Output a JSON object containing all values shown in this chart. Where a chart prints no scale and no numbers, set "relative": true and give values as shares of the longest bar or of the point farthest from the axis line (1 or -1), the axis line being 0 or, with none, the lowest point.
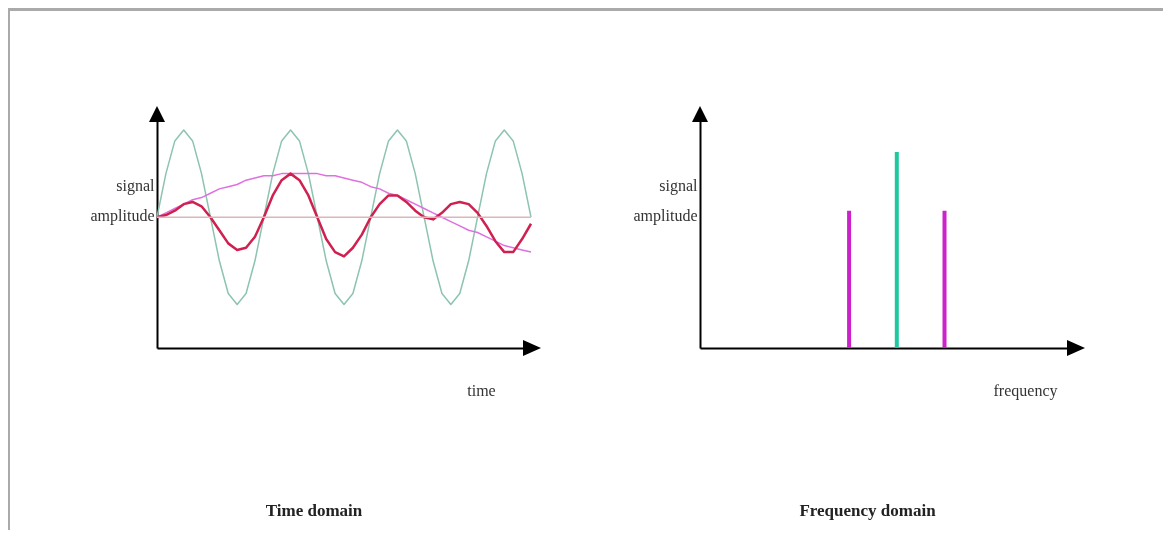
{
  "chart_data": [
    {
      "type": "line",
      "title": "Time domain",
      "xlabel": "time",
      "ylabel": "signal amplitude",
      "relative": true,
      "tick_labels": false,
      "categories": [
        null,
        null,
        null,
        null,
        null,
        null,
        null,
        null,
        null,
        null,
        null,
        null,
        null,
        null,
        null,
        null,
        null,
        null,
        null,
        null,
        null,
        null,
        null,
        null,
        null,
        null,
        null,
        null,
        null,
        null,
        null,
        null,
        null,
        null,
        null,
        null,
        null,
        null,
        null,
        null,
        null,
        null,
        null
      ],
      "series": [
        {
          "color": "#8cc4b0",
          "values": [
            0.6,
            0.8,
            0.95,
            1,
            0.95,
            0.8,
            0.6,
            0.4,
            0.25,
            0.2,
            0.25,
            0.4,
            0.6,
            0.8,
            0.95,
            1,
            0.95,
            0.8,
            0.6,
            0.4,
            0.25,
            0.2,
            0.25,
            0.4,
            0.6,
            0.8,
            0.95,
            1,
            0.95,
            0.8,
            0.6,
            0.4,
            0.25,
            0.2,
            0.25,
            0.4,
            0.6,
            0.8,
            0.95,
            1,
            0.95,
            0.8,
            0.6
          ]
        },
        {
          "color": "#e070e0",
          "values": [
            0.6,
            0.62,
            0.64,
            0.66,
            0.68,
            0.69,
            0.71,
            0.73,
            0.74,
            0.75,
            0.77,
            0.78,
            0.79,
            0.79,
            0.8,
            0.8,
            0.8,
            0.8,
            0.8,
            0.79,
            0.79,
            0.78,
            0.77,
            0.76,
            0.74,
            0.73,
            0.71,
            0.7,
            0.68,
            0.66,
            0.64,
            0.62,
            0.6,
            0.58,
            0.56,
            0.54,
            0.53,
            0.51,
            0.49,
            0.47,
            0.46,
            0.45,
            0.44
          ]
        },
        {
          "color": "#d02050",
          "values": [
            0.6,
            0.61,
            0.63,
            0.66,
            0.67,
            0.65,
            0.6,
            0.54,
            0.48,
            0.45,
            0.46,
            0.51,
            0.6,
            0.7,
            0.77,
            0.8,
            0.77,
            0.7,
            0.6,
            0.5,
            0.44,
            0.42,
            0.46,
            0.52,
            0.6,
            0.66,
            0.7,
            0.7,
            0.67,
            0.63,
            0.6,
            0.59,
            0.62,
            0.66,
            0.67,
            0.66,
            0.62,
            0.56,
            0.49,
            0.44,
            0.44,
            0.5,
            0.57
          ]
        }
      ],
      "ref_lines": [
        {
          "axis": "y",
          "value": 0.6,
          "color": "#d8b8b8"
        }
      ]
    },
    {
      "type": "bar",
      "title": "Frequency domain",
      "xlabel": "frequency",
      "ylabel": "signal amplitude",
      "relative": true,
      "tick_labels": false,
      "categories": [
        null,
        null,
        null
      ],
      "values": [
        0.7,
        1,
        0.7
      ],
      "colors": [
        "#cc22cc",
        "#20c8a0",
        "#cc22cc"
      ]
    }
  ]
}
